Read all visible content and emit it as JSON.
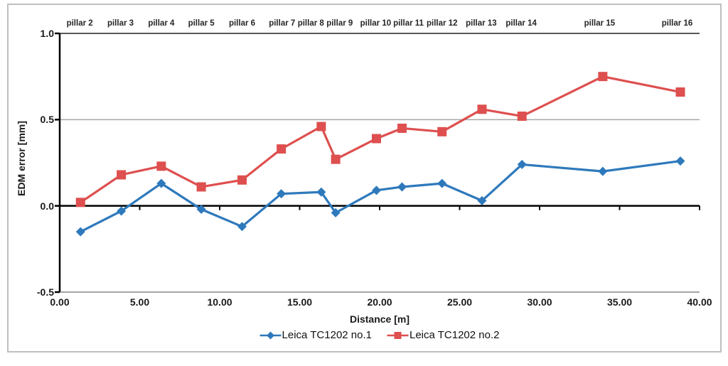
{
  "frame": {
    "border_color": "#bfbfbf"
  },
  "chart_data": {
    "type": "line",
    "title": "",
    "xlabel": "Distance [m]",
    "ylabel": "EDM error [mm]",
    "xlim": [
      0,
      40
    ],
    "ylim": [
      -0.5,
      1.0
    ],
    "grid": "horizontal-at-half-units",
    "legend_position": "bottom-center",
    "x_ticks": [
      0,
      5,
      10,
      15,
      20,
      25,
      30,
      35,
      40
    ],
    "x_tick_labels": [
      "0.00",
      "5.00",
      "10.00",
      "15.00",
      "20.00",
      "25.00",
      "30.00",
      "35.00",
      "40.00"
    ],
    "y_ticks": [
      1.0,
      0.5,
      0.0,
      -0.5
    ],
    "y_tick_labels": [
      "1.0",
      "0.5",
      "0.0",
      "-0.5"
    ],
    "pillar_labels": [
      {
        "label": "pillar 2",
        "x": 1.25
      },
      {
        "label": "pillar 3",
        "x": 3.8
      },
      {
        "label": "pillar 4",
        "x": 6.35
      },
      {
        "label": "pillar 5",
        "x": 8.85
      },
      {
        "label": "pillar 6",
        "x": 11.4
      },
      {
        "label": "pillar 7",
        "x": 13.9
      },
      {
        "label": "pillar 8",
        "x": 15.7
      },
      {
        "label": "pillar 9",
        "x": 17.5
      },
      {
        "label": "pillar 10",
        "x": 19.75
      },
      {
        "label": "pillar 11",
        "x": 21.8
      },
      {
        "label": "pillar 12",
        "x": 23.9
      },
      {
        "label": "pillar 13",
        "x": 26.35
      },
      {
        "label": "pillar 14",
        "x": 28.85
      },
      {
        "label": "pillar 15",
        "x": 33.75
      },
      {
        "label": "pillar 16",
        "x": 38.6
      }
    ],
    "x": [
      1.3,
      3.85,
      6.35,
      8.85,
      11.4,
      13.85,
      16.35,
      17.25,
      19.8,
      21.4,
      23.9,
      26.4,
      28.9,
      33.95,
      38.8
    ],
    "series": [
      {
        "name": "Leica TC1202 no.1",
        "color": "#2E79BC",
        "marker": "diamond",
        "values": [
          -0.15,
          -0.03,
          0.13,
          -0.02,
          -0.12,
          0.07,
          0.08,
          -0.04,
          0.09,
          0.11,
          0.13,
          0.03,
          0.24,
          0.2,
          0.26
        ]
      },
      {
        "name": "Leica TC1202 no.2",
        "color": "#DE4F4F",
        "marker": "square",
        "values": [
          0.02,
          0.18,
          0.23,
          0.11,
          0.15,
          0.33,
          0.46,
          0.27,
          0.39,
          0.45,
          0.43,
          0.56,
          0.52,
          0.75,
          0.66
        ]
      }
    ],
    "axis_colors": {
      "zero_line": "#000000",
      "top_line": "#595959",
      "grid_line": "#a6a6a6",
      "axis_line": "#000000"
    }
  }
}
